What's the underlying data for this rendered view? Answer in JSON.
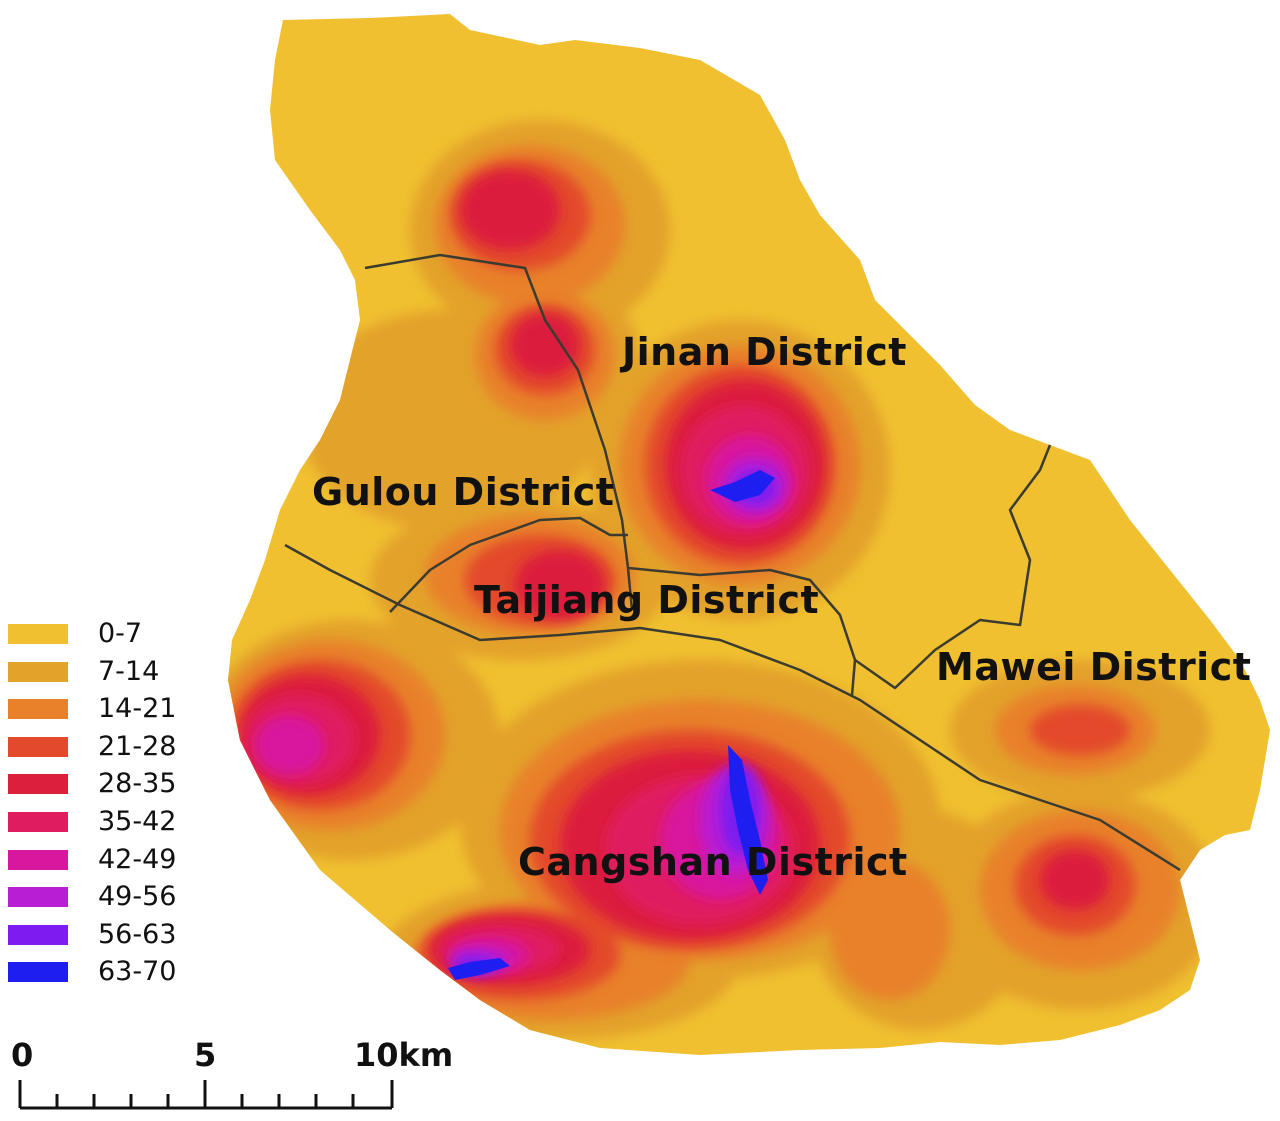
{
  "districts": {
    "jinan": "Jinan District",
    "gulou": "Gulou District",
    "taijiang": "Taijiang District",
    "mawei": "Mawei District",
    "cangshan": "Cangshan District"
  },
  "legend": [
    {
      "label": "0-7",
      "color": "#f0c030"
    },
    {
      "label": "7-14",
      "color": "#e3a229"
    },
    {
      "label": "14-21",
      "color": "#e8812a"
    },
    {
      "label": "21-28",
      "color": "#e34a2c"
    },
    {
      "label": "28-35",
      "color": "#dc1f3c"
    },
    {
      "label": "35-42",
      "color": "#e01c60"
    },
    {
      "label": "42-49",
      "color": "#d8169e"
    },
    {
      "label": "49-56",
      "color": "#b81ed4"
    },
    {
      "label": "56-63",
      "color": "#7c1cf0"
    },
    {
      "label": "63-70",
      "color": "#1e1ef0"
    }
  ],
  "scale_bar": {
    "label_0": "0",
    "label_5": "5",
    "label_10": "10km"
  }
}
